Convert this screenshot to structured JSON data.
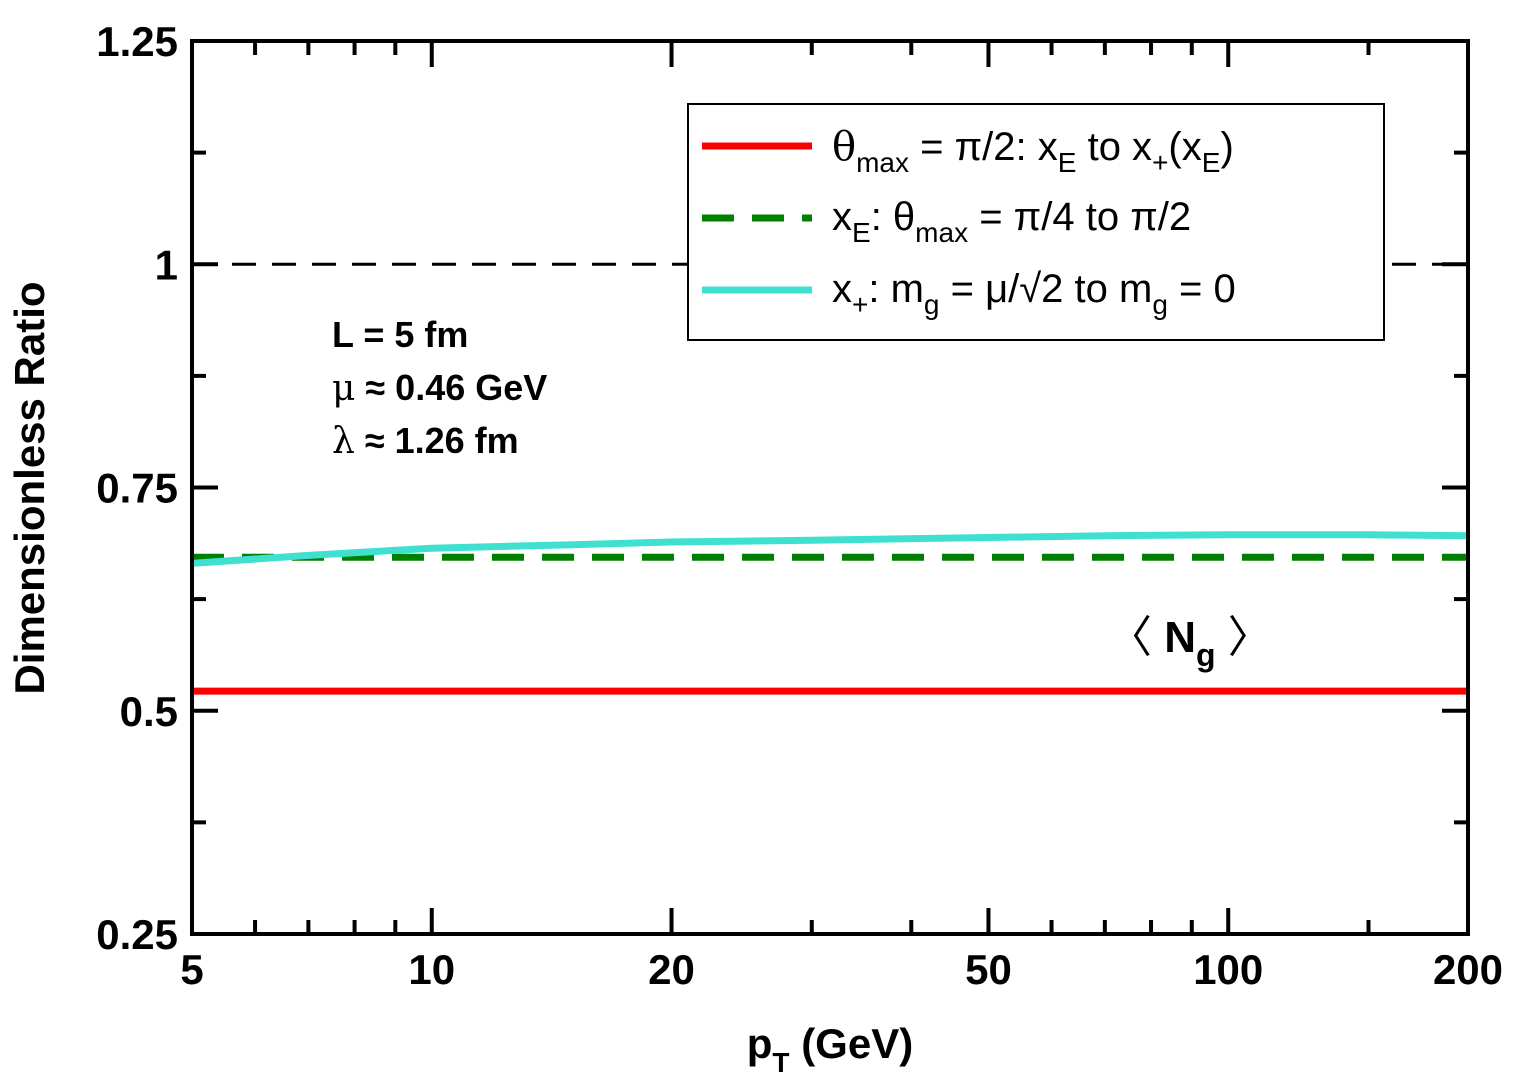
{
  "chart_data": {
    "type": "line",
    "title": "",
    "xlabel": "p",
    "xlabel_subscript": "T",
    "xlabel_suffix": " (GeV)",
    "ylabel": "Dimensionless Ratio",
    "x_scale": "log",
    "xlim": [
      5,
      200
    ],
    "ylim": [
      0.25,
      1.25
    ],
    "x_ticks": [
      5,
      10,
      20,
      50,
      100,
      200
    ],
    "x_tick_labels": [
      "5",
      "10",
      "20",
      "50",
      "100",
      "200"
    ],
    "y_ticks": [
      0.25,
      0.5,
      0.75,
      1,
      1.25
    ],
    "y_tick_labels": [
      "0.25",
      "0.5",
      "0.75",
      "1",
      "1.25"
    ],
    "reference_line": {
      "y": 1.0,
      "style": "dashed",
      "color": "#000000"
    },
    "series": [
      {
        "name": "θmax = π/2: xE to x+(xE)",
        "color": "#ff0000",
        "style": "solid",
        "x": [
          5,
          10,
          20,
          50,
          100,
          200
        ],
        "y": [
          0.522,
          0.522,
          0.522,
          0.522,
          0.522,
          0.522
        ]
      },
      {
        "name": "xE: θmax = π/4 to π/2",
        "color": "#008000",
        "style": "dashed",
        "x": [
          5,
          10,
          20,
          50,
          100,
          200
        ],
        "y": [
          0.672,
          0.672,
          0.672,
          0.672,
          0.672,
          0.672
        ]
      },
      {
        "name": "x+: mg = μ/√2 to mg = 0",
        "color": "#40e0d0",
        "style": "solid",
        "x": [
          5,
          7,
          10,
          15,
          20,
          30,
          50,
          70,
          100,
          150,
          200
        ],
        "y": [
          0.665,
          0.674,
          0.682,
          0.686,
          0.689,
          0.691,
          0.694,
          0.696,
          0.697,
          0.697,
          0.696
        ]
      }
    ],
    "legend": {
      "position": "top-right",
      "entries": [
        {
          "main": "θ",
          "sub1": "max",
          "rest": " = π/2: x",
          "sub2": "E",
          "rest2": " to x",
          "sub3": "+",
          "rest3": "(x",
          "sub4": "E",
          "rest4": ")"
        },
        {
          "main": "x",
          "sub1": "E",
          "rest": ": θ",
          "sub2": "max",
          "rest2": " = π/4 to π/2"
        },
        {
          "main": "x",
          "sub1": "+",
          "rest": ": m",
          "sub2": "g",
          "rest2": " = μ/√2 to m",
          "sub3": "g",
          "rest3": " = 0"
        }
      ]
    },
    "annotations": {
      "params": [
        {
          "lead": "",
          "text": "L = 5 fm"
        },
        {
          "lead": "μ",
          "text": " ≈ 0.46 GeV"
        },
        {
          "lead": "λ",
          "text": " ≈ 1.26 fm"
        }
      ],
      "observable": {
        "open": "〈 ",
        "main": "N",
        "sub": "g",
        "close": " 〉"
      }
    }
  }
}
